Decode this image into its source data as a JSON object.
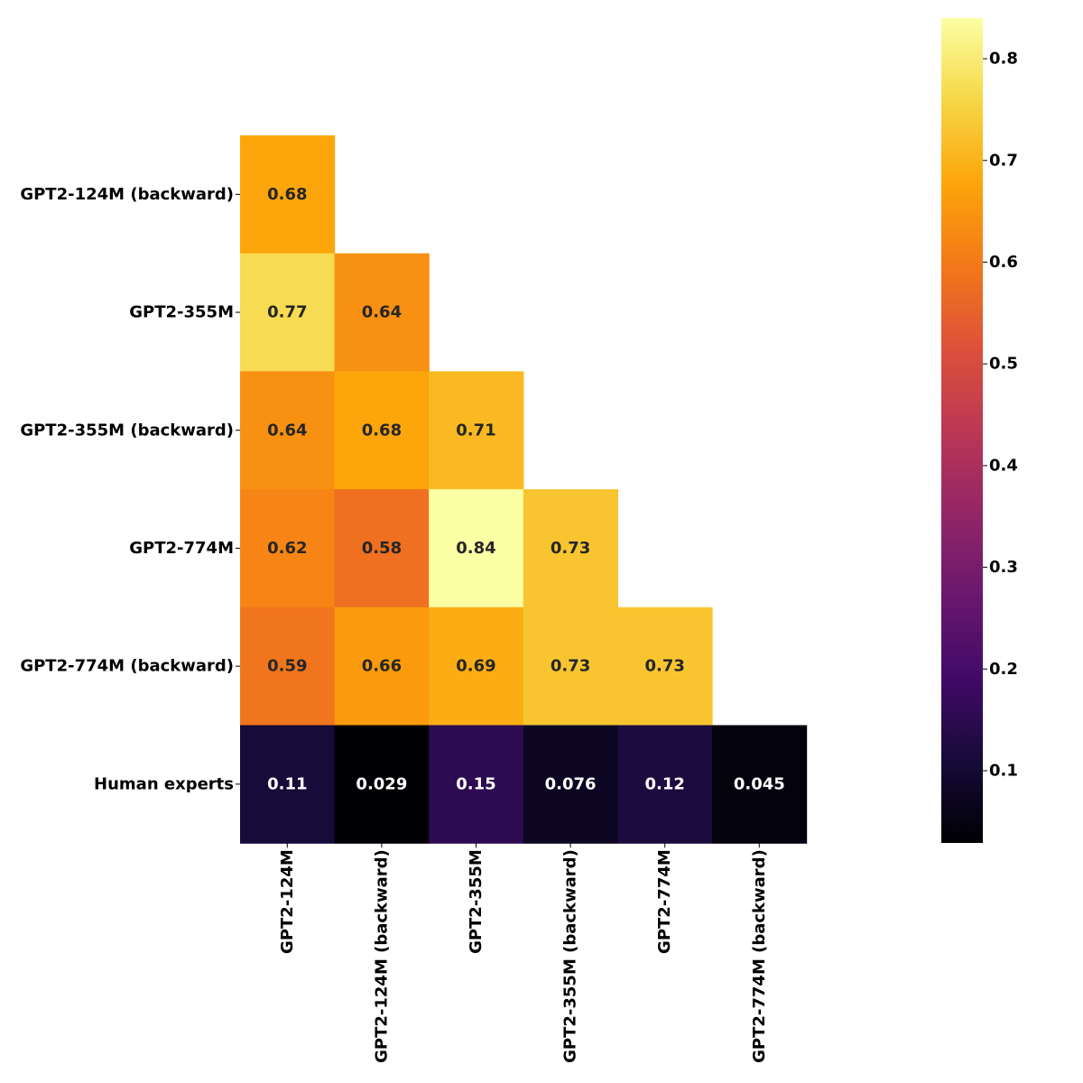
{
  "chart_data": {
    "type": "heatmap",
    "colormap": "inferno",
    "mask": "upper-triangle",
    "x_categories": [
      "GPT2-124M",
      "GPT2-124M (backward)",
      "GPT2-355M",
      "GPT2-355M (backward)",
      "GPT2-774M",
      "GPT2-774M (backward)"
    ],
    "y_categories": [
      "GPT2-124M (backward)",
      "GPT2-355M",
      "GPT2-355M (backward)",
      "GPT2-774M",
      "GPT2-774M (backward)",
      "Human experts"
    ],
    "values": [
      [
        0.68,
        null,
        null,
        null,
        null,
        null
      ],
      [
        0.77,
        0.64,
        null,
        null,
        null,
        null
      ],
      [
        0.64,
        0.68,
        0.71,
        null,
        null,
        null
      ],
      [
        0.62,
        0.58,
        0.84,
        0.73,
        null,
        null
      ],
      [
        0.59,
        0.66,
        0.69,
        0.73,
        0.73,
        null
      ],
      [
        0.11,
        0.029,
        0.15,
        0.076,
        0.12,
        0.045
      ]
    ],
    "labels": [
      [
        "0.68",
        null,
        null,
        null,
        null,
        null
      ],
      [
        "0.77",
        "0.64",
        null,
        null,
        null,
        null
      ],
      [
        "0.64",
        "0.68",
        "0.71",
        null,
        null,
        null
      ],
      [
        "0.62",
        "0.58",
        "0.84",
        "0.73",
        null,
        null
      ],
      [
        "0.59",
        "0.66",
        "0.69",
        "0.73",
        "0.73",
        null
      ],
      [
        "0.11",
        "0.029",
        "0.15",
        "0.076",
        "0.12",
        "0.045"
      ]
    ],
    "colorbar": {
      "range": [
        0.029,
        0.84
      ],
      "ticks": [
        0.1,
        0.2,
        0.3,
        0.4,
        0.5,
        0.6,
        0.7,
        0.8
      ],
      "tick_labels": [
        "0.1",
        "0.2",
        "0.3",
        "0.4",
        "0.5",
        "0.6",
        "0.7",
        "0.8"
      ]
    },
    "title": "",
    "xlabel": "",
    "ylabel": ""
  }
}
